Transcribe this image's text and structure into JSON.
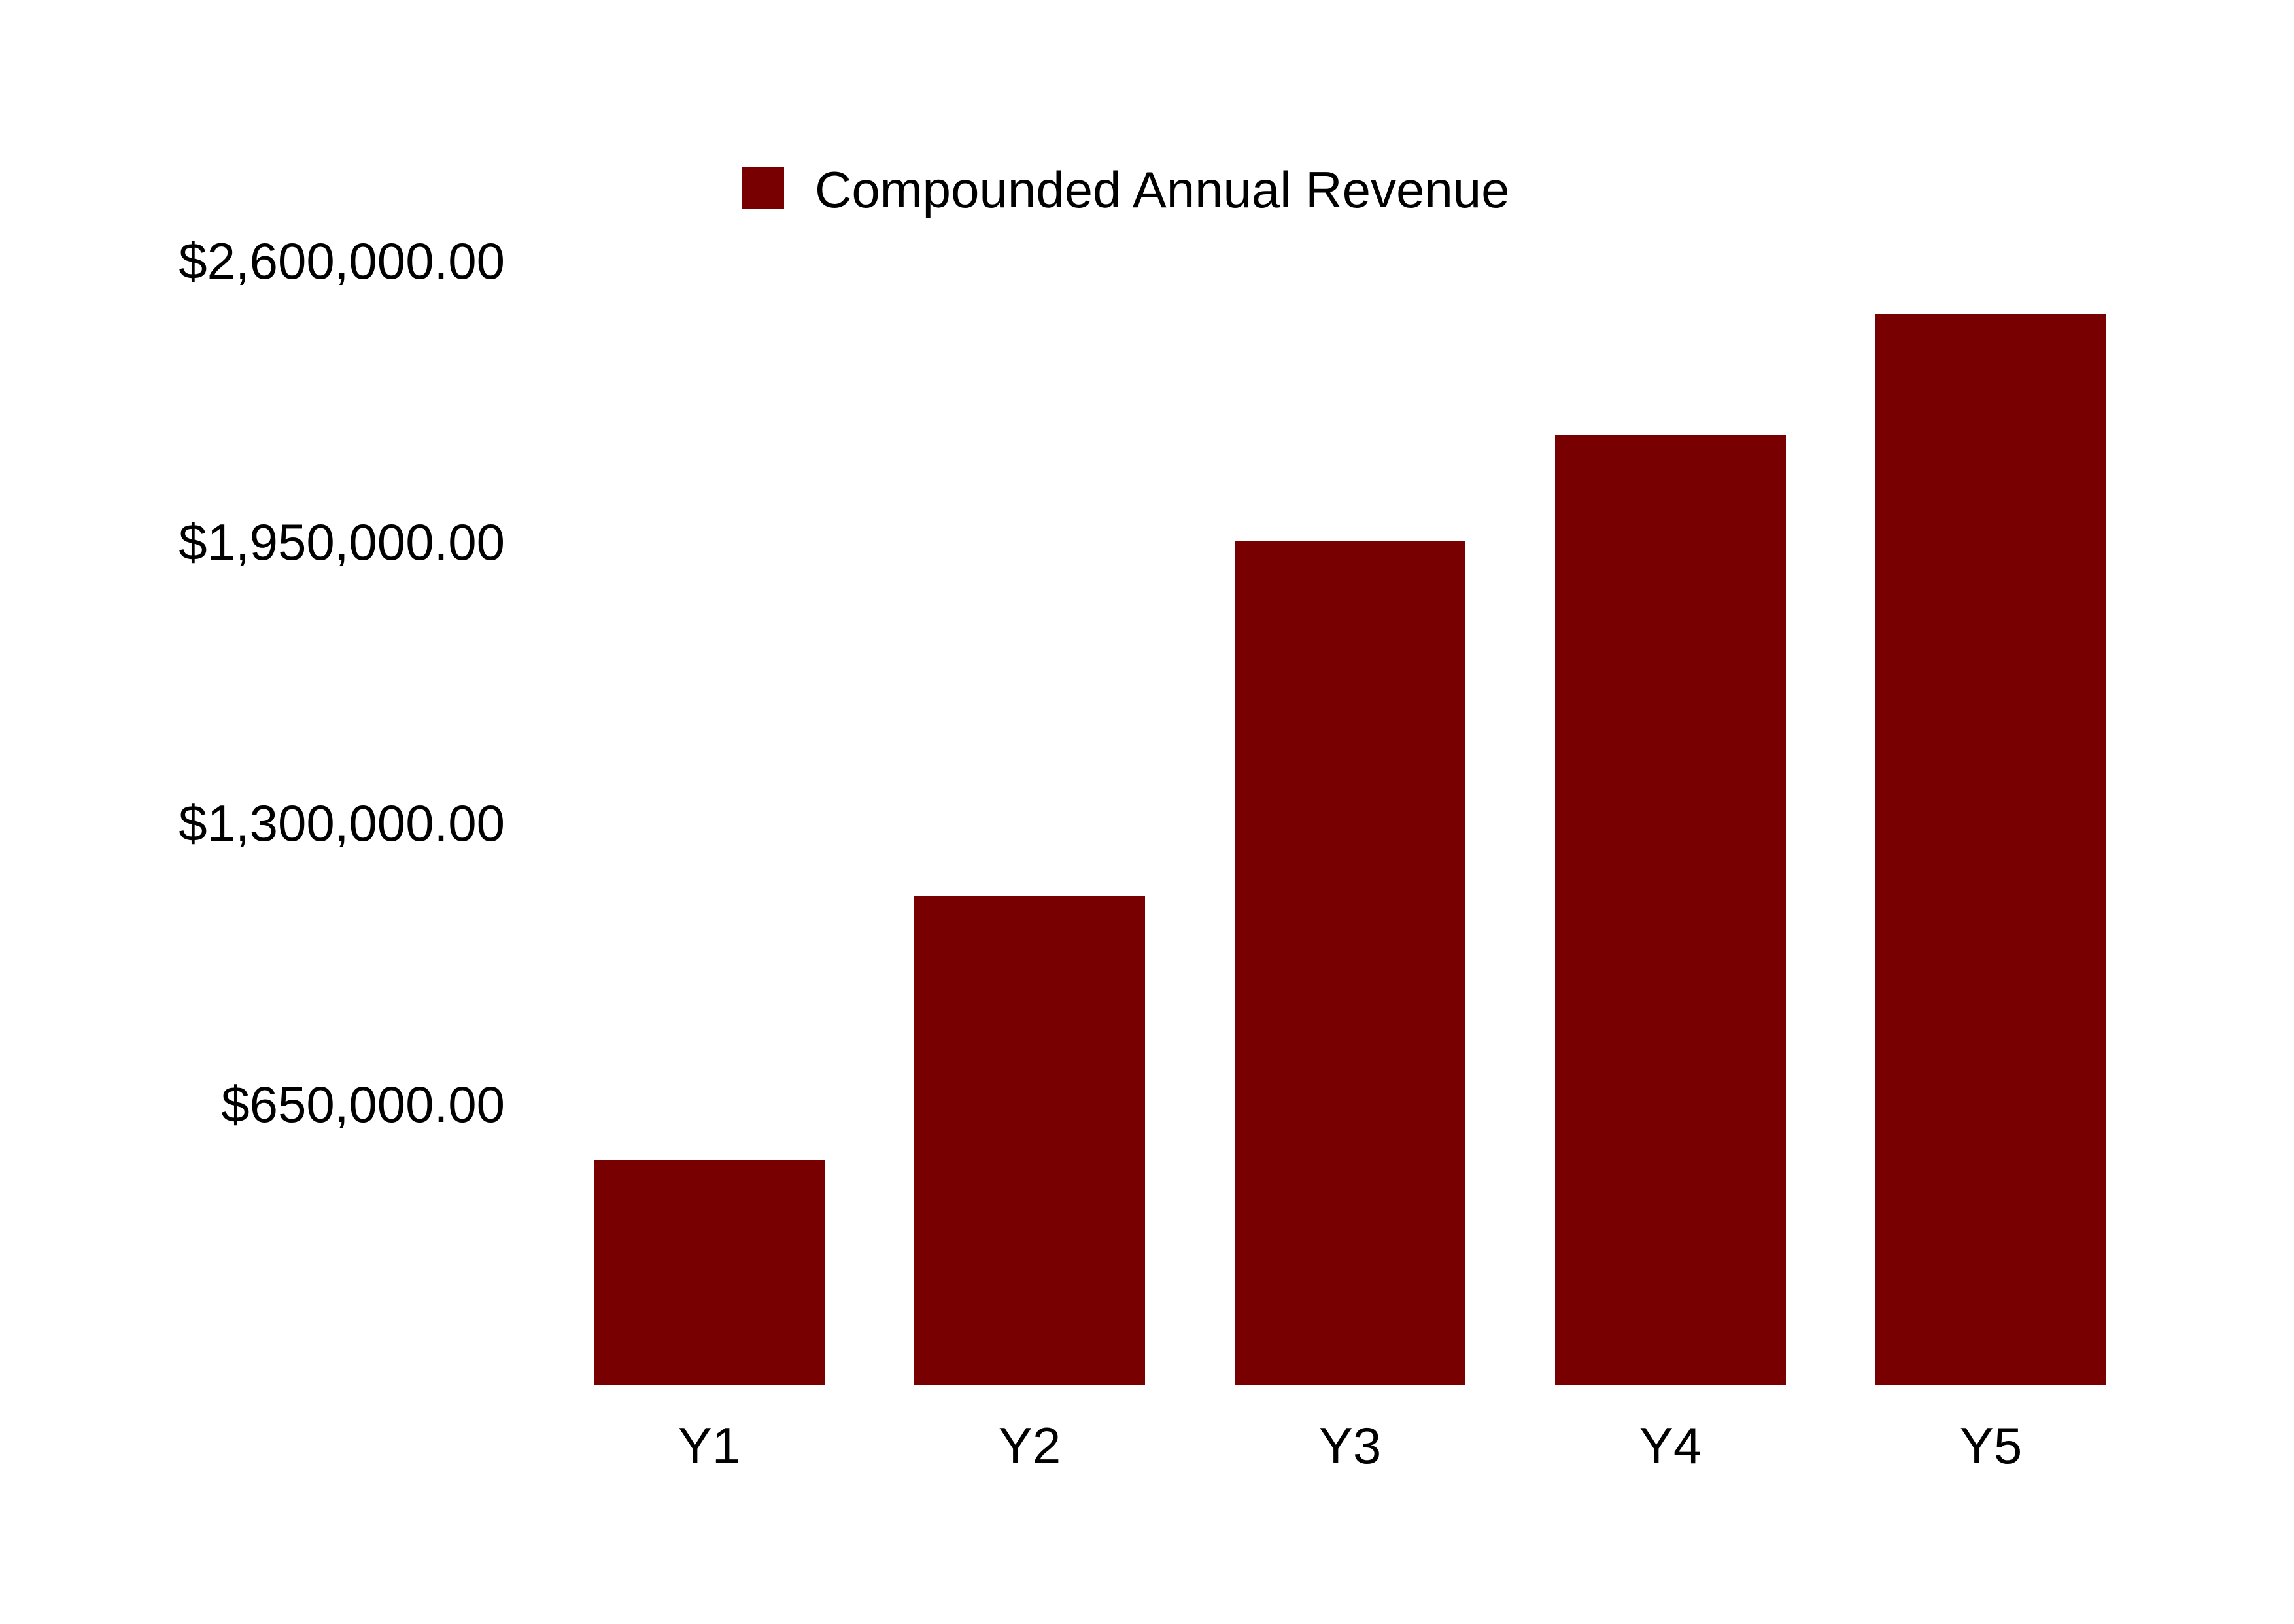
{
  "chart_data": {
    "type": "bar",
    "categories": [
      "Y1",
      "Y2",
      "Y3",
      "Y4",
      "Y5"
    ],
    "series": [
      {
        "name": "Compounded Annual Revenue",
        "values": [
          520000,
          1130000,
          1950000,
          2195000,
          2475000
        ],
        "color": "#780000"
      }
    ],
    "ylim": [
      0,
      2600000
    ],
    "yticks": [
      650000,
      1300000,
      1950000,
      2600000
    ],
    "ytick_labels": [
      "$650,000.00",
      "$1,300,000.00",
      "$1,950,000.00",
      "$2,600,000.00"
    ],
    "grid": false,
    "legend_position": "top-center"
  }
}
